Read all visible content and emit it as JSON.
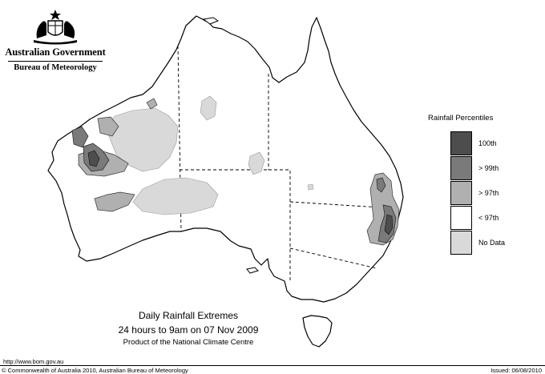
{
  "header": {
    "government": "Australian Government",
    "bureau": "Bureau of Meteorology"
  },
  "legend": {
    "title": "Rainfall Percentiles",
    "items": [
      {
        "label": "100th",
        "color": "#4d4d4d"
      },
      {
        "label": "> 99th",
        "color": "#7a7a7a"
      },
      {
        "label": "> 97th",
        "color": "#b0b0b0"
      },
      {
        "label": "< 97th",
        "color": "#ffffff"
      },
      {
        "label": "No Data",
        "color": "#d9d9d9"
      }
    ]
  },
  "caption": {
    "title": "Daily Rainfall Extremes",
    "period": "24 hours to 9am on 07 Nov 2009",
    "product": "Product of the National Climate Centre"
  },
  "footer": {
    "url": "http://www.bom.gov.au",
    "copyright": "© Commonwealth of Australia 2010, Australian Bureau of Meteorology",
    "issued": "Issued: 06/08/2010"
  },
  "map": {
    "region": "Australia",
    "colors": {
      "land": "#ffffff",
      "outline": "#000000",
      "border_dash": "#000000"
    }
  }
}
